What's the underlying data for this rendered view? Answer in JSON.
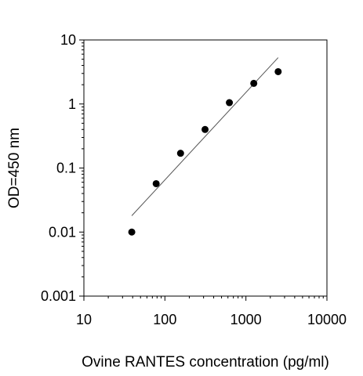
{
  "chart_data": {
    "type": "scatter",
    "xlabel": "Ovine RANTES concentration (pg/ml)",
    "ylabel": "OD=450 nm",
    "x_scale": "log",
    "y_scale": "log",
    "xlim": [
      10,
      10000
    ],
    "ylim": [
      0.001,
      10
    ],
    "x_ticks": [
      10,
      100,
      1000,
      10000
    ],
    "x_tick_labels": [
      "10",
      "100",
      "1000",
      "10000"
    ],
    "y_ticks": [
      0.001,
      0.01,
      0.1,
      1,
      10
    ],
    "y_tick_labels": [
      "0.001",
      "0.01",
      "0.1",
      "1",
      "10"
    ],
    "grid": false,
    "legend": "none",
    "series": [
      {
        "points": [
          {
            "x": 39,
            "y": 0.01
          },
          {
            "x": 78,
            "y": 0.057
          },
          {
            "x": 156,
            "y": 0.17
          },
          {
            "x": 313,
            "y": 0.4
          },
          {
            "x": 625,
            "y": 1.05
          },
          {
            "x": 1250,
            "y": 2.1
          },
          {
            "x": 2500,
            "y": 3.2
          }
        ],
        "color": "#000000"
      }
    ],
    "trendline": {
      "points": [
        {
          "x": 39,
          "y": 0.018
        },
        {
          "x": 2500,
          "y": 5.3
        }
      ],
      "color": "#555555"
    }
  }
}
